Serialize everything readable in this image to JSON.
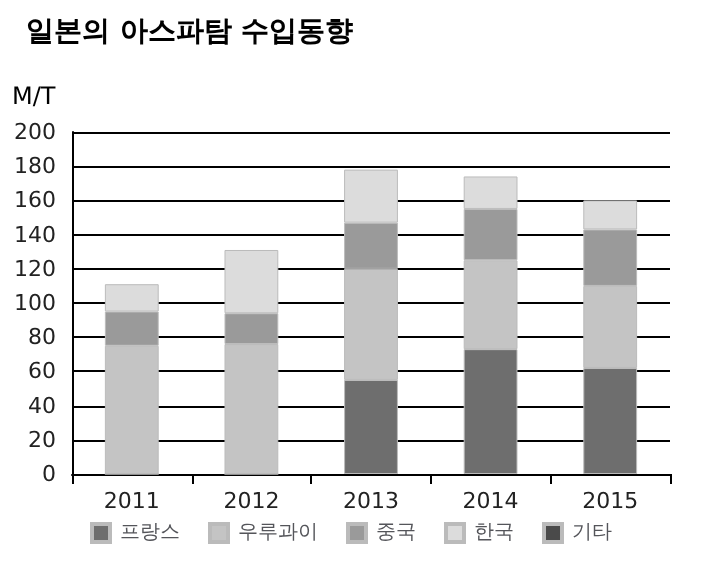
{
  "chart_data": {
    "type": "bar",
    "title": "일본의 아스파탐 수입동향",
    "ylabel": "M/T",
    "stacked": true,
    "categories": [
      "2011",
      "2012",
      "2013",
      "2014",
      "2015"
    ],
    "series": [
      {
        "name": "프랑스",
        "color": "#6e6e6e",
        "values": [
          0,
          0,
          55,
          73,
          62
        ]
      },
      {
        "name": "우루과이",
        "color": "#c4c4c4",
        "values": [
          75,
          76,
          65,
          52,
          48
        ]
      },
      {
        "name": "중국",
        "color": "#9a9a9a",
        "values": [
          20,
          18,
          27,
          30,
          33
        ]
      },
      {
        "name": "한국",
        "color": "#dcdcdc",
        "values": [
          16,
          37,
          31,
          19,
          17
        ]
      },
      {
        "name": "기타",
        "color": "#4a4a4a",
        "values": [
          null,
          null,
          null,
          null,
          null
        ]
      }
    ],
    "ylim": [
      0,
      200
    ],
    "yticks": [
      0,
      20,
      40,
      60,
      80,
      100,
      120,
      140,
      160,
      180,
      200
    ],
    "grid": "y",
    "legend": "bottom"
  }
}
